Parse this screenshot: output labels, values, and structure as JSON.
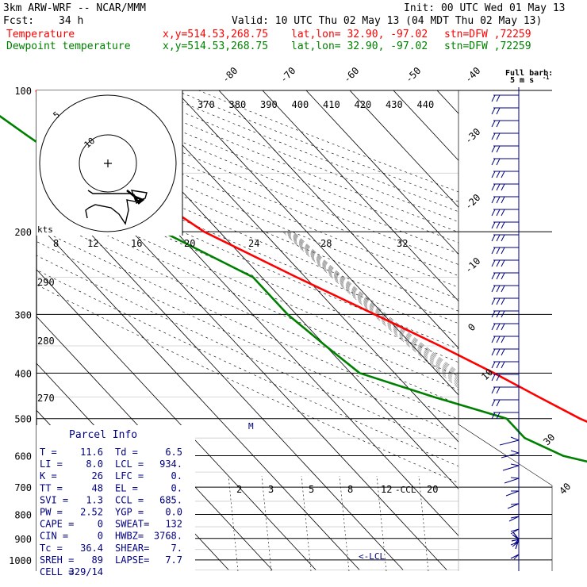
{
  "header": {
    "model": "3km ARW-WRF -- NCAR/MMM",
    "init": "Init: 00 UTC Wed 01 May 13",
    "fcst_label": "Fcst:",
    "fcst_value": "34 h",
    "valid": "Valid: 10 UTC Thu 02 May 13 (04 MDT Thu 02 May 13)",
    "temp_line": {
      "label": "Temperature",
      "xy": "x,y=514.53,268.75",
      "latlon": "lat,lon= 32.90, -97.02",
      "stn": "stn=DFW ,72259",
      "color": "#ff0000"
    },
    "dew_line": {
      "label": "Dewpoint temperature",
      "xy": "x,y=514.53,268.75",
      "latlon": "lat,lon= 32.90, -97.02",
      "stn": "stn=DFW ,72259",
      "color": "#008000"
    }
  },
  "barb_legend": {
    "title": "Full barb:",
    "unit": "5 m s",
    "exp": "-1"
  },
  "parcel": {
    "title": "Parcel Info",
    "rows": [
      [
        "T  =",
        "11.6",
        "Td =",
        "6.5"
      ],
      [
        "LI =",
        "8.0",
        "LCL =",
        "934."
      ],
      [
        "K  =",
        "26",
        "LFC =",
        "0."
      ],
      [
        "TT =",
        "48",
        "EL  =",
        "0."
      ],
      [
        "SVI =",
        "1.3",
        "CCL =",
        "685."
      ],
      [
        "PW =",
        "2.52",
        "YGP =",
        "0.0"
      ],
      [
        "CAPE =",
        "0",
        "SWEAT=",
        "132"
      ],
      [
        "CIN =",
        "0",
        "HWBZ=",
        "3768."
      ],
      [
        "Tc =",
        "36.4",
        "SHEAR=",
        "7."
      ],
      [
        "SREH =",
        "89",
        "LAPSE=",
        "7.7"
      ],
      [
        "CELL =",
        "329/14",
        "",
        ""
      ]
    ]
  },
  "hodograph": {
    "unit": "kts",
    "ring_labels": [
      "5",
      "10"
    ],
    "speed_ticks": [
      "8",
      "12",
      "16",
      "20"
    ]
  },
  "annotations": {
    "ccl": "-CCL",
    "lcl": "<-LCL",
    "m": "M"
  },
  "chart_data": {
    "type": "line",
    "title": "",
    "y_axis": {
      "label": "",
      "scale": "log pressure (hPa)",
      "ticks": [
        "100",
        "200",
        "300",
        "400",
        "500",
        "600",
        "700",
        "800",
        "900",
        "1000"
      ],
      "range": [
        1050,
        100
      ]
    },
    "x_axis": {
      "label": "",
      "scale": "skewed temperature (°C)"
    },
    "isotherm_labels_top": [
      "-80",
      "-70",
      "-60",
      "-50",
      "-40"
    ],
    "isotherm_labels_right": [
      "-30",
      "-20",
      "-10",
      "0",
      "10",
      "30",
      "40"
    ],
    "theta_e_labels": [
      "370",
      "380",
      "390",
      "400",
      "410",
      "420",
      "430",
      "440"
    ],
    "theta_labels_left": [
      "290",
      "280",
      "270"
    ],
    "mixing_ratio_labels": [
      "24",
      "28",
      "32",
      "2",
      "3",
      "5",
      "8",
      "12",
      "20"
    ],
    "series": [
      {
        "name": "Temperature",
        "color": "#ff0000",
        "points": [
          [
            990,
            14.3
          ],
          [
            970,
            12.8
          ],
          [
            950,
            13.7
          ],
          [
            900,
            14.8
          ],
          [
            850,
            15.9
          ],
          [
            800,
            14.8
          ],
          [
            750,
            12.5
          ],
          [
            700,
            10.3
          ],
          [
            650,
            8.0
          ],
          [
            600,
            3.6
          ],
          [
            550,
            -1.0
          ],
          [
            500,
            -7.2
          ],
          [
            450,
            -12.0
          ],
          [
            400,
            -17.2
          ],
          [
            350,
            -23.8
          ],
          [
            300,
            -32.0
          ],
          [
            250,
            -42.0
          ],
          [
            200,
            -53.5
          ],
          [
            175,
            -57.0
          ],
          [
            150,
            -57.0
          ],
          [
            125,
            -57.5
          ],
          [
            100,
            -62.0
          ]
        ]
      },
      {
        "name": "Dewpoint temperature",
        "color": "#008000",
        "points": [
          [
            990,
            4.2
          ],
          [
            970,
            4.0
          ],
          [
            950,
            14.0
          ],
          [
            920,
            14.4
          ],
          [
            900,
            13.0
          ],
          [
            870,
            8.7
          ],
          [
            850,
            4.6
          ],
          [
            800,
            -2.6
          ],
          [
            750,
            -3.2
          ],
          [
            730,
            -2.3
          ],
          [
            700,
            2.3
          ],
          [
            680,
            7.2
          ],
          [
            650,
            -6.8
          ],
          [
            600,
            -19.0
          ],
          [
            550,
            -24.0
          ],
          [
            500,
            -24.0
          ],
          [
            450,
            -36.0
          ],
          [
            400,
            -48.0
          ],
          [
            350,
            -50.0
          ],
          [
            300,
            -52.0
          ],
          [
            250,
            -52.0
          ],
          [
            200,
            -63.0
          ],
          [
            175,
            -64.5
          ],
          [
            150,
            -69.0
          ],
          [
            125,
            -73.5
          ],
          [
            100,
            -78.5
          ]
        ]
      }
    ]
  }
}
